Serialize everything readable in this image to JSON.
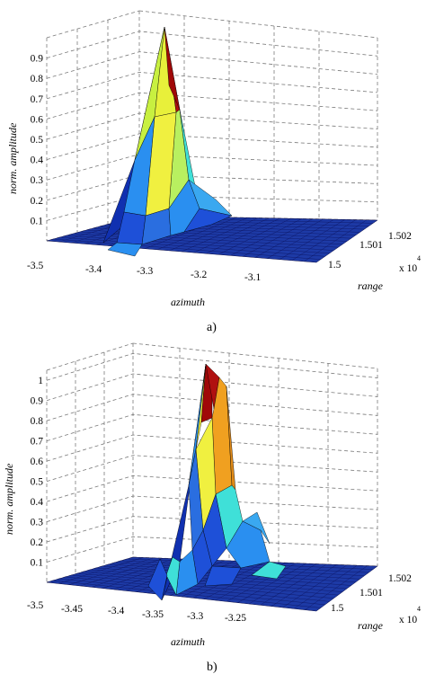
{
  "chart_data": [
    {
      "type": "surface",
      "caption": "a)",
      "xlabel": "azimuth",
      "ylabel": "range",
      "zlabel": "norm. amplitude",
      "x_ticks": [
        "-3.5",
        "-3.4",
        "-3.3",
        "-3.2",
        "-3.1"
      ],
      "y_ticks": [
        "1.5",
        "1.501",
        "1.502"
      ],
      "y_multiplier": "x 10",
      "y_exponent": "4",
      "z_ticks": [
        "0.1",
        "0.2",
        "0.3",
        "0.4",
        "0.5",
        "0.6",
        "0.7",
        "0.8",
        "0.9"
      ],
      "zlim": [
        0,
        1
      ],
      "grid": true,
      "colormap": [
        "#0f1f8a",
        "#1e50d8",
        "#2a8ff0",
        "#3fe0d8",
        "#b8f060",
        "#f0f040",
        "#f0a020",
        "#b01010"
      ],
      "peak": {
        "azimuth": -3.3,
        "value": 1.0
      }
    },
    {
      "type": "surface",
      "caption": "b)",
      "xlabel": "azimuth",
      "ylabel": "range",
      "zlabel": "norm. amplitude",
      "x_ticks": [
        "-3.5",
        "-3.45",
        "-3.4",
        "-3.35",
        "-3.3",
        "-3.25"
      ],
      "y_ticks": [
        "1.5",
        "1.501",
        "1.502"
      ],
      "y_multiplier": "x 10",
      "y_exponent": "4",
      "z_ticks": [
        "0.1",
        "0.2",
        "0.3",
        "0.4",
        "0.5",
        "0.6",
        "0.7",
        "0.8",
        "0.9",
        "1"
      ],
      "zlim": [
        0,
        1.05
      ],
      "grid": true,
      "colormap": [
        "#0f1f8a",
        "#1e50d8",
        "#2a8ff0",
        "#3fe0d8",
        "#b8f060",
        "#f0f040",
        "#f0a020",
        "#b01010"
      ],
      "peak": {
        "azimuth": -3.32,
        "value": 1.0
      }
    }
  ]
}
